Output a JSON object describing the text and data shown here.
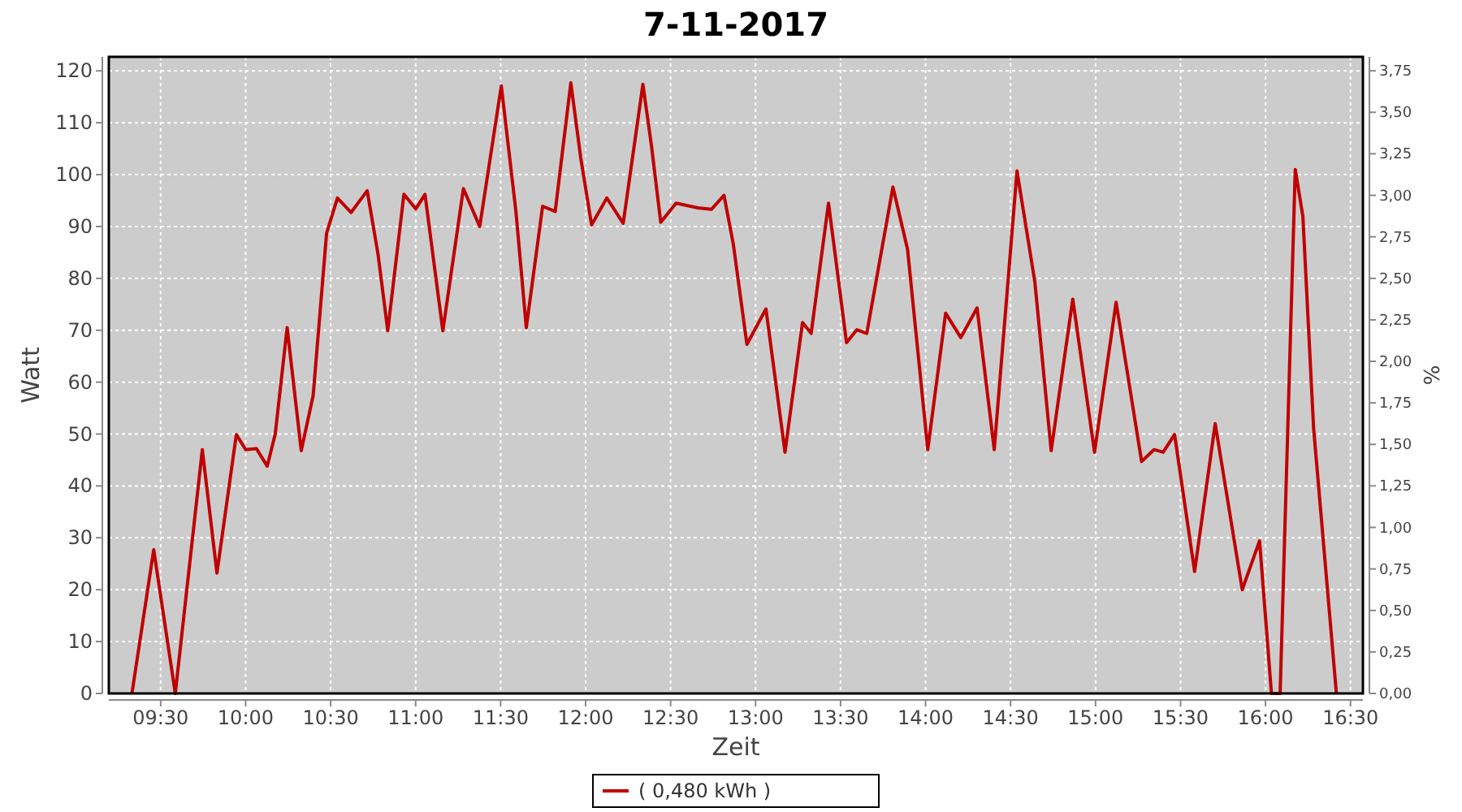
{
  "chart_data": {
    "type": "line",
    "title": "7-11-2017",
    "xlabel": "Zeit",
    "ylabel": "Watt",
    "y2label": "%",
    "xlim": [
      9.195,
      16.573
    ],
    "ylim": [
      0,
      122.7
    ],
    "y2lim": [
      0,
      3.834
    ],
    "xticks": [
      {
        "value": 9.5,
        "label": "09:30"
      },
      {
        "value": 10,
        "label": "10:00"
      },
      {
        "value": 10.5,
        "label": "10:30"
      },
      {
        "value": 11,
        "label": "11:00"
      },
      {
        "value": 11.5,
        "label": "11:30"
      },
      {
        "value": 12,
        "label": "12:00"
      },
      {
        "value": 12.5,
        "label": "12:30"
      },
      {
        "value": 13,
        "label": "13:00"
      },
      {
        "value": 13.5,
        "label": "13:30"
      },
      {
        "value": 14,
        "label": "14:00"
      },
      {
        "value": 14.5,
        "label": "14:30"
      },
      {
        "value": 15,
        "label": "15:00"
      },
      {
        "value": 15.5,
        "label": "15:30"
      },
      {
        "value": 16,
        "label": "16:00"
      },
      {
        "value": 16.5,
        "label": "16:30"
      }
    ],
    "yticks": [
      0,
      10,
      20,
      30,
      40,
      50,
      60,
      70,
      80,
      90,
      100,
      110,
      120
    ],
    "y2ticks": [
      {
        "value": 0,
        "label": "0,00"
      },
      {
        "value": 0.25,
        "label": "0,25"
      },
      {
        "value": 0.5,
        "label": "0,50"
      },
      {
        "value": 0.75,
        "label": "0,75"
      },
      {
        "value": 1,
        "label": "1,00"
      },
      {
        "value": 1.25,
        "label": "1,25"
      },
      {
        "value": 1.5,
        "label": "1,50"
      },
      {
        "value": 1.75,
        "label": "1,75"
      },
      {
        "value": 2,
        "label": "2,00"
      },
      {
        "value": 2.25,
        "label": "2,25"
      },
      {
        "value": 2.5,
        "label": "2,50"
      },
      {
        "value": 2.75,
        "label": "2,75"
      },
      {
        "value": 3,
        "label": "3,00"
      },
      {
        "value": 3.25,
        "label": "3,25"
      },
      {
        "value": 3.5,
        "label": "3,50"
      },
      {
        "value": 3.75,
        "label": "3,75"
      }
    ],
    "grid": true,
    "legend": "bottom",
    "marker": "none",
    "line_style": "solid",
    "x": [
      9.331,
      9.459,
      9.586,
      9.745,
      9.831,
      9.945,
      10.0,
      10.063,
      10.127,
      10.174,
      10.244,
      10.327,
      10.397,
      10.476,
      10.54,
      10.62,
      10.715,
      10.779,
      10.836,
      10.931,
      11.001,
      11.055,
      11.16,
      11.281,
      11.377,
      11.504,
      11.59,
      11.651,
      11.747,
      11.821,
      11.913,
      11.971,
      12.035,
      12.125,
      12.221,
      12.337,
      12.388,
      12.442,
      12.532,
      12.66,
      12.74,
      12.814,
      12.869,
      12.949,
      13.061,
      13.173,
      13.276,
      13.327,
      13.429,
      13.535,
      13.596,
      13.654,
      13.808,
      13.894,
      14.013,
      14.118,
      14.207,
      14.303,
      14.404,
      14.538,
      14.643,
      14.739,
      14.866,
      14.994,
      15.121,
      15.271,
      15.344,
      15.398,
      15.465,
      15.583,
      15.704,
      15.863,
      15.965,
      16.035,
      16.086,
      16.175,
      16.22,
      16.283,
      16.417
    ],
    "series": [
      {
        "name": "( 0,480 kWh )",
        "color": "#c00000",
        "values": [
          0,
          27.7,
          0,
          47,
          23.2,
          49.9,
          47,
          47.2,
          43.8,
          50,
          70.5,
          46.8,
          57.4,
          88.7,
          95.5,
          92.7,
          96.9,
          84.6,
          69.9,
          96.2,
          93.4,
          96.2,
          69.9,
          97.3,
          90,
          117.1,
          92.9,
          70.5,
          93.9,
          92.9,
          117.7,
          103.3,
          90.3,
          95.5,
          90.6,
          117.4,
          105.4,
          90.8,
          94.5,
          93.6,
          93.3,
          96,
          86.6,
          67.3,
          74.1,
          46.5,
          71.5,
          69.4,
          94.5,
          67.6,
          70.1,
          69.4,
          97.6,
          85.6,
          47,
          73.3,
          68.6,
          74.3,
          47,
          100.7,
          79.3,
          46.8,
          76,
          46.5,
          75.4,
          44.7,
          47,
          46.5,
          49.9,
          23.5,
          52,
          20,
          29.4,
          0,
          0,
          101,
          91.9,
          51.1,
          0
        ]
      }
    ]
  }
}
